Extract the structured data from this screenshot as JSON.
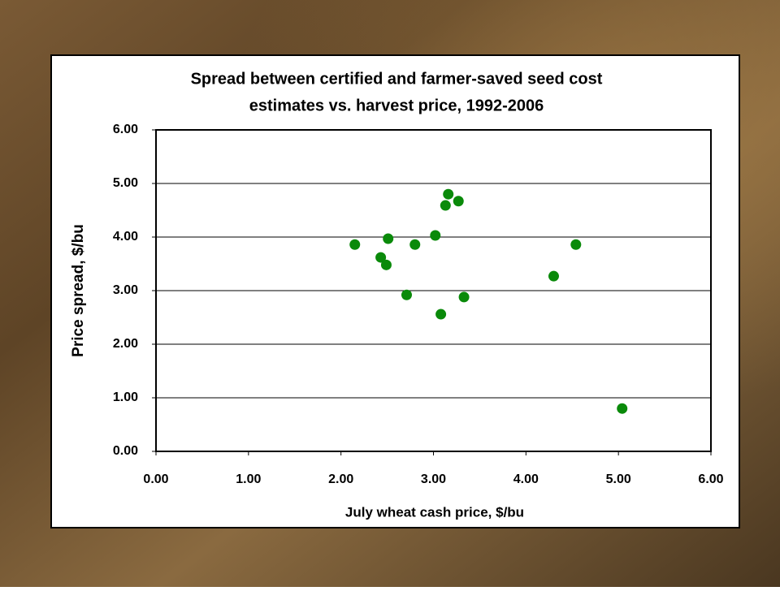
{
  "chart_data": {
    "type": "scatter",
    "title": [
      "Spread between certified and farmer-saved seed cost",
      "estimates vs. harvest price, 1992-2006"
    ],
    "x_label": "July wheat cash price, $/bu",
    "y_label": "Price spread, $/bu",
    "x": [
      2.15,
      2.43,
      2.51,
      2.49,
      2.71,
      2.8,
      3.02,
      3.08,
      3.13,
      3.16,
      3.27,
      3.33,
      4.3,
      4.54,
      5.04
    ],
    "values": [
      3.86,
      3.62,
      3.97,
      3.48,
      2.92,
      3.86,
      4.03,
      2.56,
      4.59,
      4.8,
      4.67,
      2.88,
      3.27,
      3.86,
      0.8
    ],
    "color": "#0a8a0a",
    "xlim": [
      0,
      6
    ],
    "ylim": [
      0,
      6
    ],
    "xticks": [
      {
        "value": 0,
        "label": "0.00"
      },
      {
        "value": 1,
        "label": "1.00"
      },
      {
        "value": 2,
        "label": "2.00"
      },
      {
        "value": 3,
        "label": "3.00"
      },
      {
        "value": 4,
        "label": "4.00"
      },
      {
        "value": 5,
        "label": "5.00"
      },
      {
        "value": 6,
        "label": "6.00"
      }
    ],
    "yticks": [
      {
        "value": 0,
        "label": "0.00"
      },
      {
        "value": 1,
        "label": "1.00"
      },
      {
        "value": 2,
        "label": "2.00"
      },
      {
        "value": 3,
        "label": "3.00"
      },
      {
        "value": 4,
        "label": "4.00"
      },
      {
        "value": 5,
        "label": "5.00"
      },
      {
        "value": 6,
        "label": "6.00"
      }
    ],
    "grid": true
  }
}
